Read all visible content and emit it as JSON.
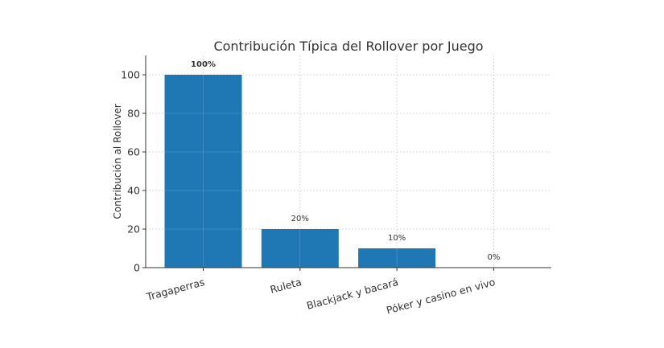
{
  "chart_data": {
    "type": "bar",
    "title": "Contribución Típica del Rollover por Juego",
    "xlabel": "",
    "ylabel": "Contribución al Rollover",
    "categories": [
      "Tragaperras",
      "Ruleta",
      "Blackjack y bacará",
      "Póker y casino en vivo"
    ],
    "values": [
      100,
      20,
      10,
      0
    ],
    "value_labels": [
      "100%",
      "20%",
      "10%",
      "0%"
    ],
    "ylim": [
      0,
      110
    ],
    "yticks": [
      0,
      20,
      40,
      60,
      80,
      100
    ],
    "grid": true,
    "legend": null,
    "bar_color": "#1f77b4",
    "xtick_rotation": 15
  }
}
